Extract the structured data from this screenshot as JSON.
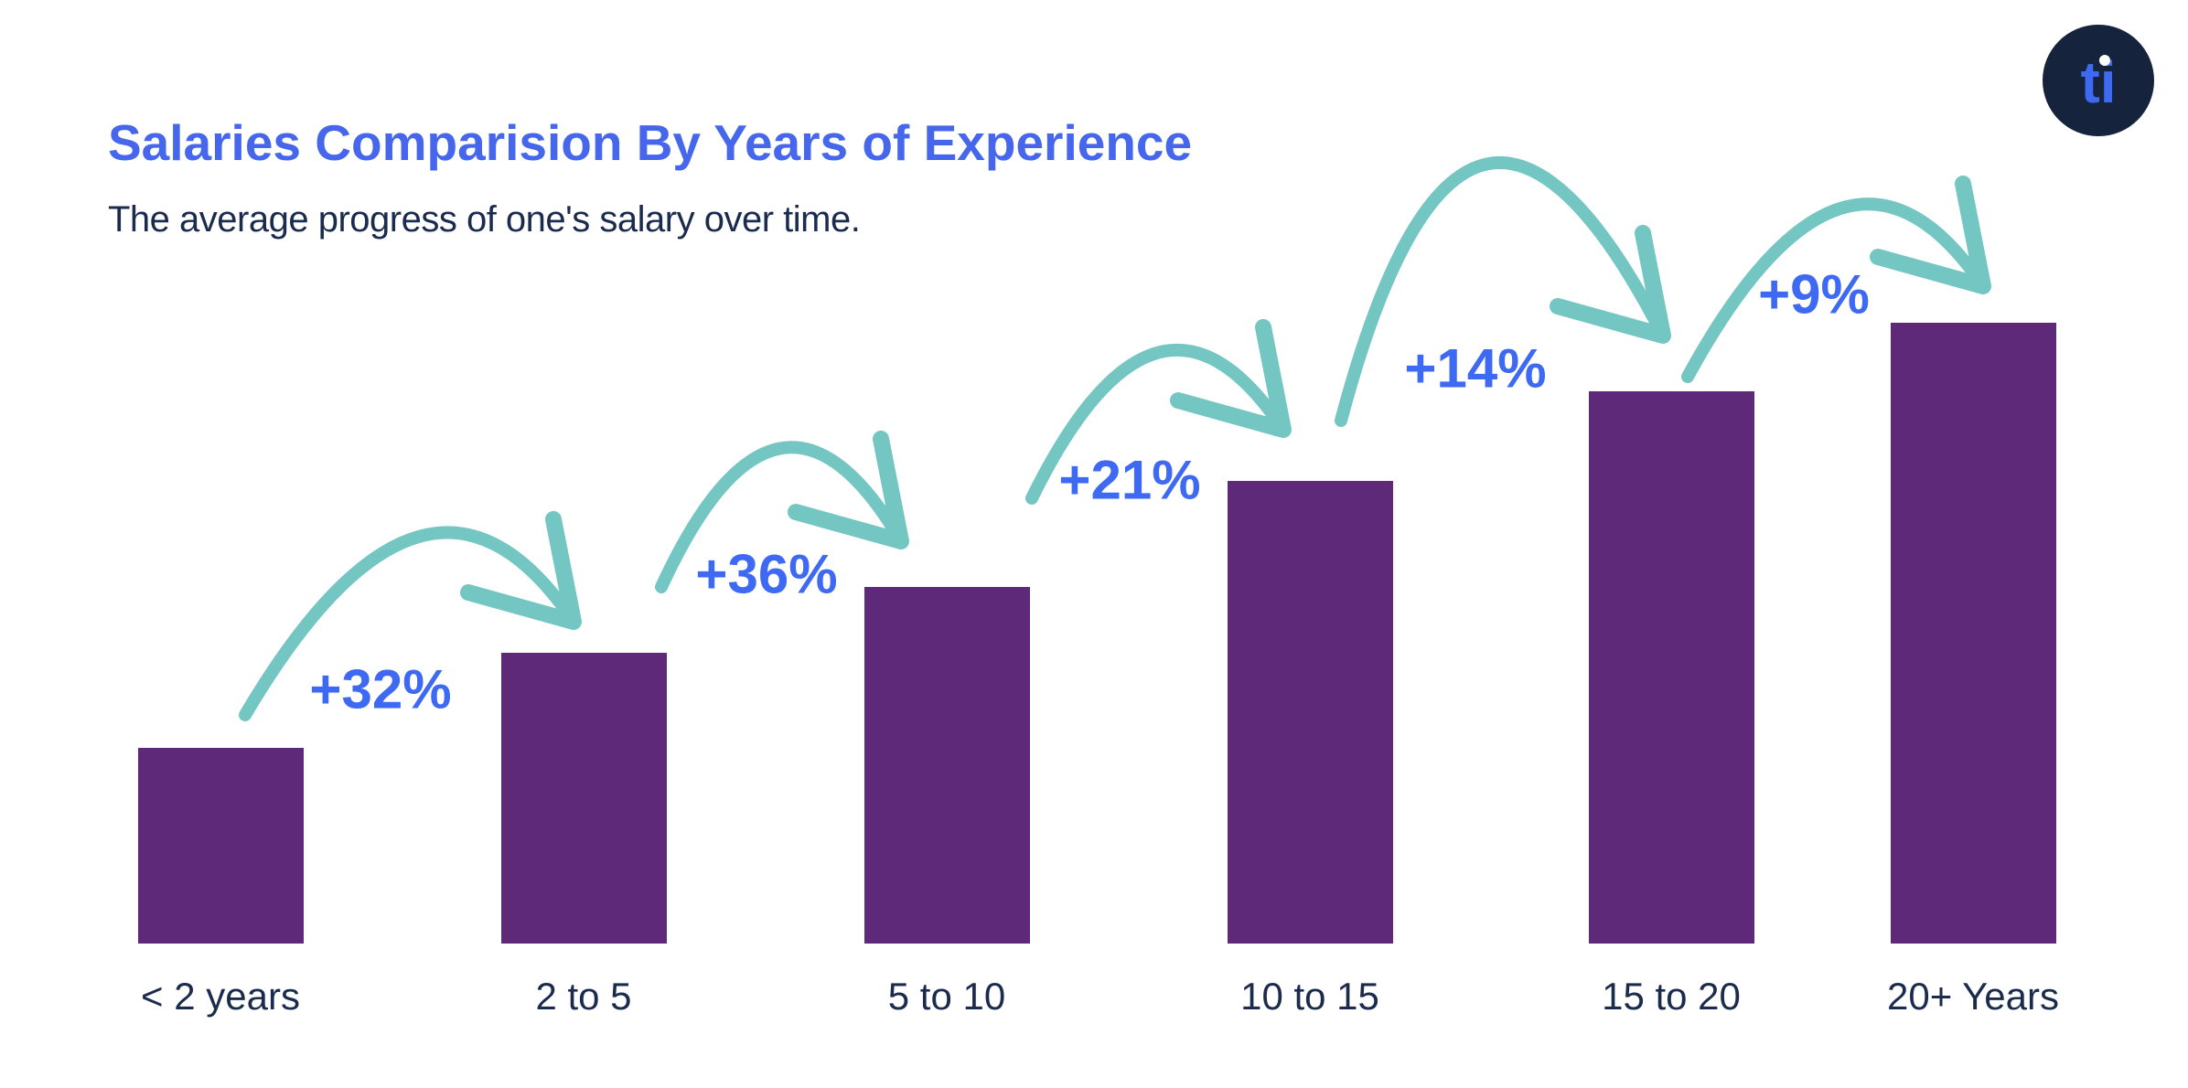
{
  "page": {
    "background": "#ffffff"
  },
  "header": {
    "title": "Salaries Comparision By Years of Experience",
    "subtitle": "The average progress of one's salary over time.",
    "title_color": "#4667EC",
    "subtitle_color": "#1B2B4D"
  },
  "logo": {
    "text": "ti",
    "circle_color": "#15233D",
    "text_color": "#3E69F2",
    "dot_color": "#ffffff"
  },
  "chart_data": {
    "type": "bar",
    "title": "Salaries Comparision By Years of Experience",
    "subtitle": "The average progress of one's salary over time.",
    "categories": [
      "< 2 years",
      "2 to 5",
      "5 to 10",
      "10 to 15",
      "15 to 20",
      "20+ Years"
    ],
    "values": [
      214,
      318,
      390,
      506,
      604,
      679
    ],
    "value_note": "relative bar heights; chart shows no numeric y-axis",
    "growth_annotations": [
      "+32%",
      "+36%",
      "+21%",
      "+14%",
      "+9%"
    ],
    "bar_color": "#5F2979",
    "arrow_color": "#74C6C2",
    "annotation_color": "#3E69F2",
    "category_color": "#1B2B4D",
    "xlabel": "",
    "ylabel": "",
    "grid": false,
    "legend": false
  }
}
